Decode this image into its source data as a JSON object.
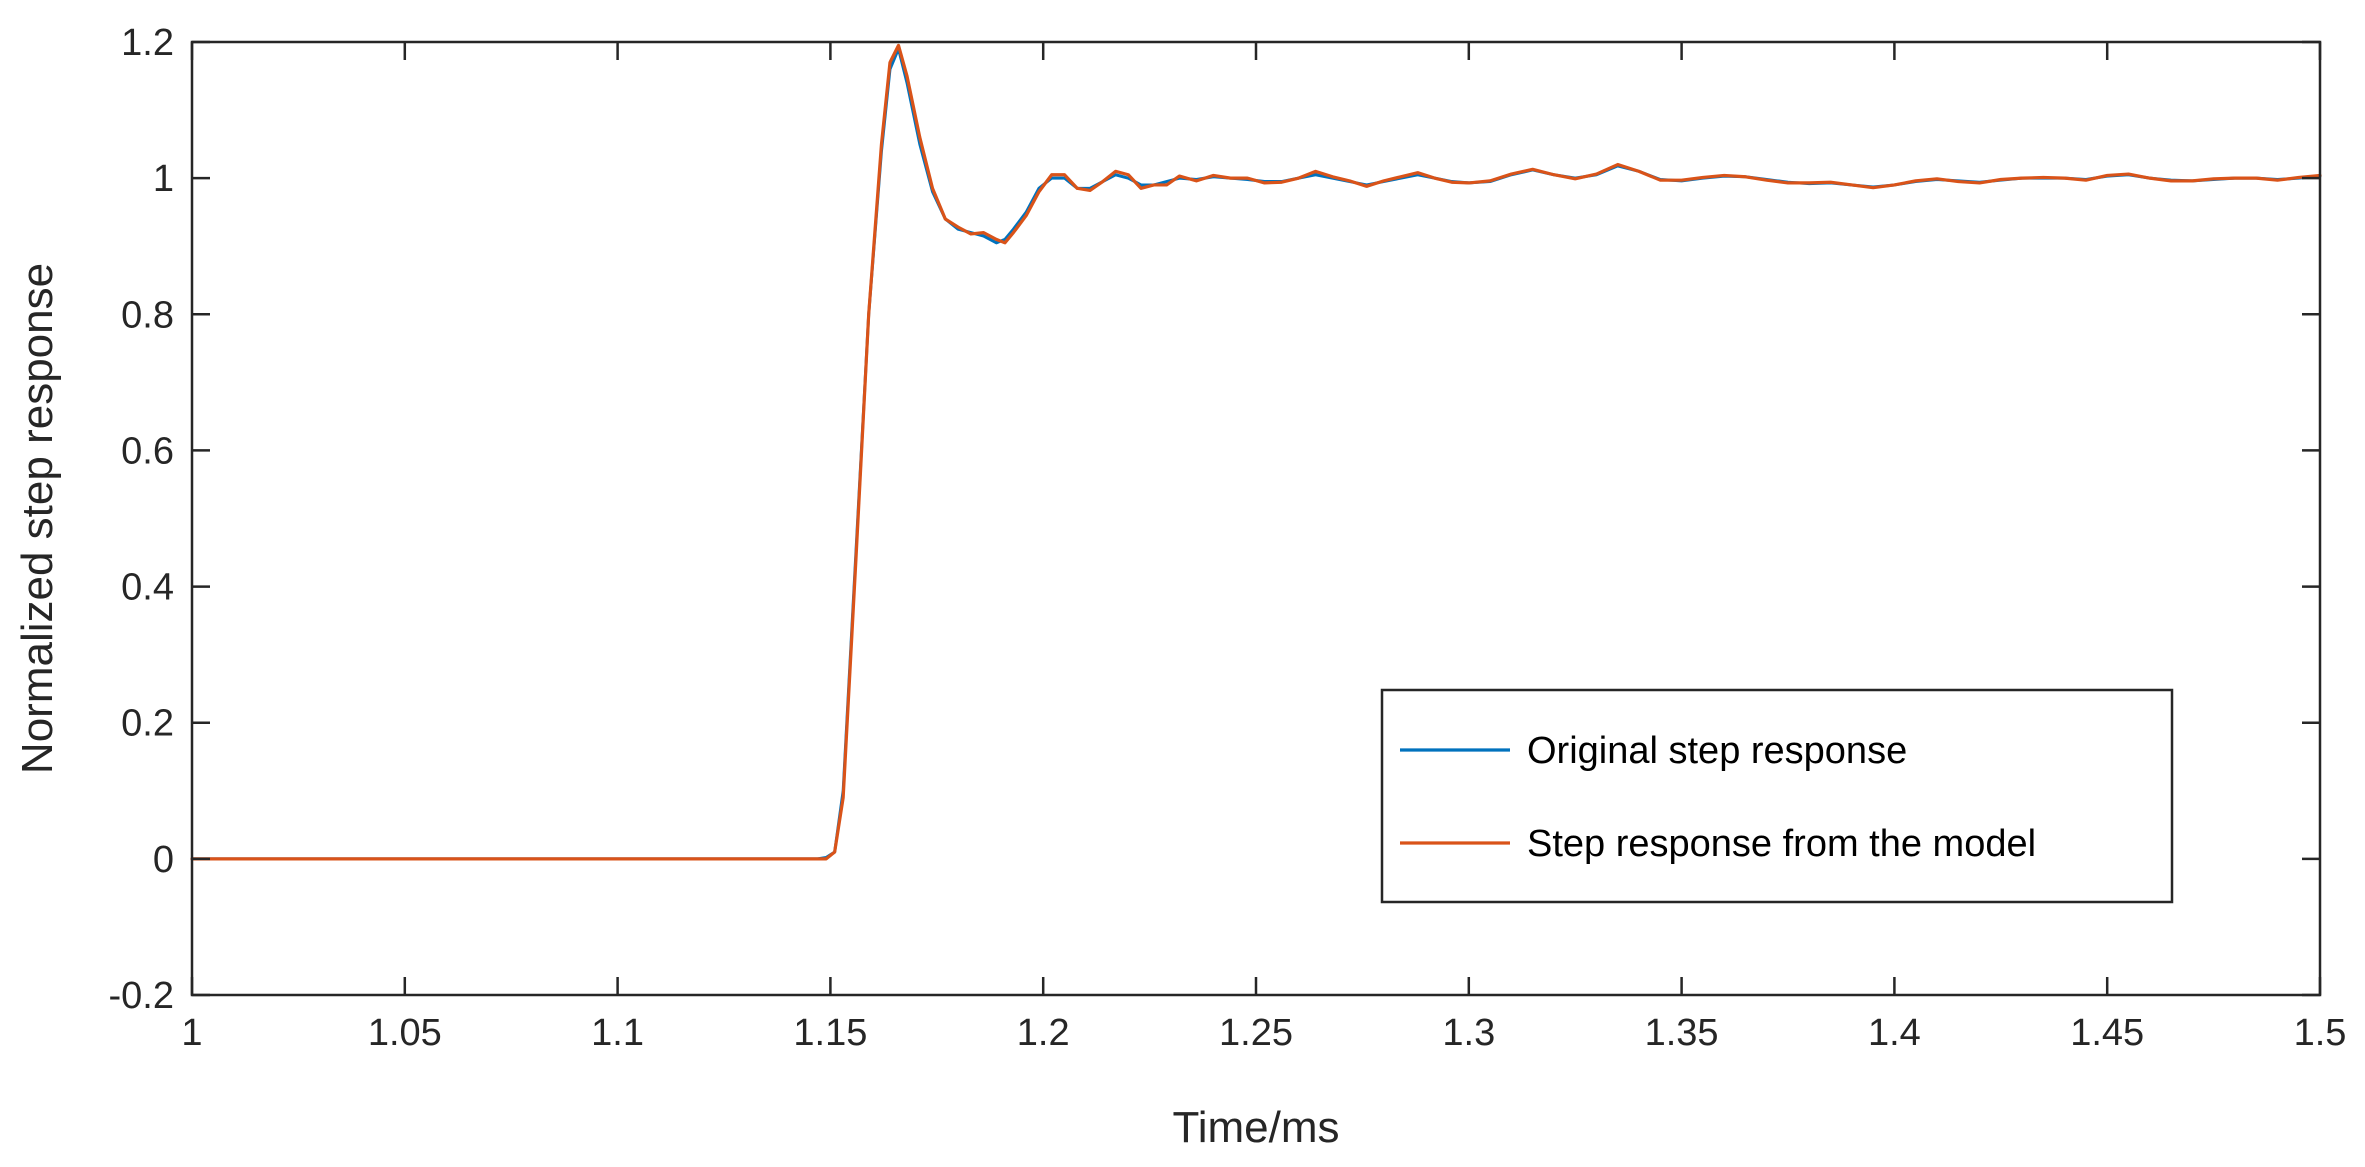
{
  "chart_data": {
    "type": "line",
    "title": "",
    "xlabel": "Time/ms",
    "ylabel": "Normalized step response",
    "xlim": [
      1,
      1.5
    ],
    "ylim": [
      -0.2,
      1.2
    ],
    "xticks": [
      1,
      1.05,
      1.1,
      1.15,
      1.2,
      1.25,
      1.3,
      1.35,
      1.4,
      1.45,
      1.5
    ],
    "xtick_labels": [
      "1",
      "1.05",
      "1.1",
      "1.15",
      "1.2",
      "1.25",
      "1.3",
      "1.35",
      "1.4",
      "1.45",
      "1.5"
    ],
    "yticks": [
      -0.2,
      0,
      0.2,
      0.4,
      0.6,
      0.8,
      1,
      1.2
    ],
    "ytick_labels": [
      "-0.2",
      "0",
      "0.2",
      "0.4",
      "0.6",
      "0.8",
      "1",
      "1.2"
    ],
    "grid": false,
    "legend_position": "lower-right",
    "series": [
      {
        "name": "Original step response",
        "color": "#0072BD",
        "x": [
          1,
          1.147,
          1.149,
          1.151,
          1.153,
          1.156,
          1.159,
          1.162,
          1.164,
          1.166,
          1.168,
          1.171,
          1.174,
          1.177,
          1.18,
          1.183,
          1.186,
          1.189,
          1.191,
          1.193,
          1.196,
          1.199,
          1.202,
          1.205,
          1.208,
          1.211,
          1.214,
          1.217,
          1.22,
          1.223,
          1.226,
          1.229,
          1.232,
          1.236,
          1.24,
          1.244,
          1.248,
          1.252,
          1.256,
          1.26,
          1.264,
          1.268,
          1.272,
          1.276,
          1.28,
          1.284,
          1.288,
          1.292,
          1.296,
          1.3,
          1.305,
          1.31,
          1.315,
          1.32,
          1.325,
          1.33,
          1.335,
          1.34,
          1.345,
          1.35,
          1.355,
          1.36,
          1.365,
          1.37,
          1.375,
          1.38,
          1.385,
          1.39,
          1.395,
          1.4,
          1.405,
          1.41,
          1.415,
          1.42,
          1.425,
          1.43,
          1.435,
          1.44,
          1.445,
          1.45,
          1.455,
          1.46,
          1.465,
          1.47,
          1.475,
          1.48,
          1.485,
          1.49,
          1.495,
          1.5
        ],
        "values": [
          0,
          0,
          0.002,
          0.01,
          0.1,
          0.45,
          0.8,
          1.04,
          1.16,
          1.19,
          1.14,
          1.05,
          0.98,
          0.94,
          0.925,
          0.92,
          0.915,
          0.905,
          0.91,
          0.925,
          0.95,
          0.985,
          1.0,
          1.0,
          0.985,
          0.985,
          0.995,
          1.005,
          1.0,
          0.99,
          0.99,
          0.995,
          1.0,
          0.998,
          1.002,
          1.0,
          0.998,
          0.995,
          0.995,
          1.0,
          1.005,
          1.0,
          0.995,
          0.99,
          0.995,
          1.0,
          1.005,
          1.0,
          0.995,
          0.993,
          0.995,
          1.005,
          1.012,
          1.005,
          1.0,
          1.005,
          1.018,
          1.01,
          0.998,
          0.996,
          1.0,
          1.003,
          1.002,
          0.998,
          0.994,
          0.992,
          0.993,
          0.99,
          0.987,
          0.99,
          0.995,
          0.998,
          0.996,
          0.994,
          0.997,
          1.0,
          1.0,
          1.0,
          0.998,
          1.003,
          1.005,
          1.0,
          0.997,
          0.996,
          0.998,
          1.0,
          1.0,
          0.998,
          1.0,
          1.003
        ]
      },
      {
        "name": "Step response from the model",
        "color": "#D95319",
        "x": [
          1,
          1.147,
          1.149,
          1.151,
          1.153,
          1.156,
          1.159,
          1.162,
          1.164,
          1.166,
          1.168,
          1.171,
          1.174,
          1.177,
          1.18,
          1.183,
          1.186,
          1.189,
          1.191,
          1.193,
          1.196,
          1.199,
          1.202,
          1.205,
          1.208,
          1.211,
          1.214,
          1.217,
          1.22,
          1.223,
          1.226,
          1.229,
          1.232,
          1.236,
          1.24,
          1.244,
          1.248,
          1.252,
          1.256,
          1.26,
          1.264,
          1.268,
          1.272,
          1.276,
          1.28,
          1.284,
          1.288,
          1.292,
          1.296,
          1.3,
          1.305,
          1.31,
          1.315,
          1.32,
          1.325,
          1.33,
          1.335,
          1.34,
          1.345,
          1.35,
          1.355,
          1.36,
          1.365,
          1.37,
          1.375,
          1.38,
          1.385,
          1.39,
          1.395,
          1.4,
          1.405,
          1.41,
          1.415,
          1.42,
          1.425,
          1.43,
          1.435,
          1.44,
          1.445,
          1.45,
          1.455,
          1.46,
          1.465,
          1.47,
          1.475,
          1.48,
          1.485,
          1.49,
          1.495,
          1.5
        ],
        "values": [
          0,
          0,
          0.0,
          0.01,
          0.09,
          0.44,
          0.8,
          1.05,
          1.17,
          1.195,
          1.15,
          1.06,
          0.985,
          0.94,
          0.928,
          0.918,
          0.92,
          0.91,
          0.905,
          0.92,
          0.945,
          0.98,
          1.005,
          1.005,
          0.985,
          0.982,
          0.995,
          1.01,
          1.005,
          0.985,
          0.99,
          0.99,
          1.003,
          0.996,
          1.004,
          1.0,
          1.0,
          0.993,
          0.994,
          1.0,
          1.01,
          1.002,
          0.996,
          0.988,
          0.996,
          1.002,
          1.008,
          1.0,
          0.994,
          0.993,
          0.996,
          1.006,
          1.013,
          1.005,
          0.999,
          1.006,
          1.02,
          1.01,
          0.997,
          0.997,
          1.001,
          1.004,
          1.002,
          0.997,
          0.993,
          0.993,
          0.994,
          0.99,
          0.986,
          0.99,
          0.996,
          0.999,
          0.995,
          0.993,
          0.998,
          1.0,
          1.001,
          1.0,
          0.997,
          1.004,
          1.006,
          1.0,
          0.996,
          0.996,
          0.999,
          1.0,
          1.0,
          0.997,
          1.001,
          1.004
        ]
      }
    ]
  }
}
